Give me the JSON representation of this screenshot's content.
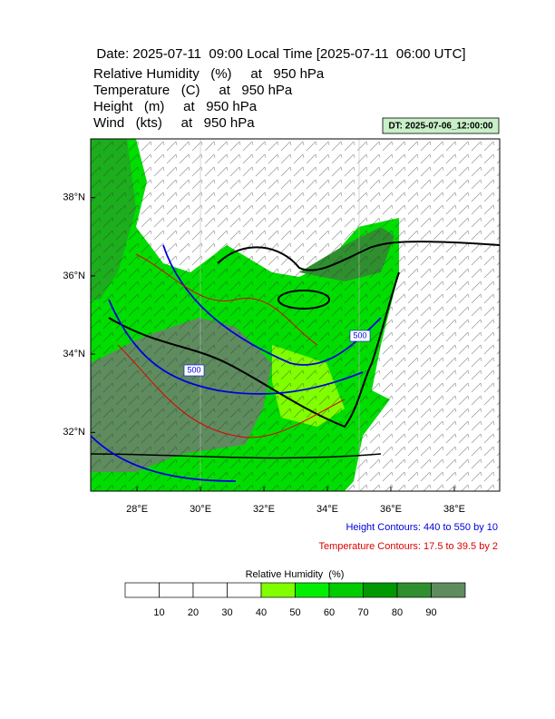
{
  "title": "Date: 2025-07-11  09:00 Local Time [2025-07-11  06:00 UTC]",
  "variables": [
    "Relative Humidity   (%)     at   950 hPa",
    "Temperature   (C)     at   950 hPa",
    "Height   (m)     at   950 hPa",
    "Wind   (kts)     at   950 hPa"
  ],
  "dt_label": "DT: 2025-07-06_12:00:00",
  "map": {
    "lonlim": [
      26.54,
      39.43
    ],
    "latlim": [
      30.5,
      39.5
    ],
    "lon_ticks": [
      {
        "value": 28,
        "label": "28°E"
      },
      {
        "value": 30,
        "label": "30°E"
      },
      {
        "value": 32,
        "label": "32°E"
      },
      {
        "value": 34,
        "label": "34°E"
      },
      {
        "value": 36,
        "label": "36°E"
      },
      {
        "value": 38,
        "label": "38°E"
      }
    ],
    "lat_ticks": [
      {
        "value": 32,
        "label": "32°N"
      },
      {
        "value": 34,
        "label": "34°N"
      },
      {
        "value": 36,
        "label": "36°N"
      },
      {
        "value": 38,
        "label": "38°N"
      }
    ],
    "contour_labels": [
      "500",
      "500"
    ]
  },
  "height_note": "Height Contours: 440 to 550 by 10",
  "temperature_note": "Temperature Contours: 17.5 to 39.5 by 2",
  "colorbar": {
    "title": "Relative Humidity  (%)",
    "ticks": [
      10,
      20,
      30,
      40,
      50,
      60,
      70,
      80,
      90
    ],
    "colors": [
      "#ffffff",
      "#ffffff",
      "#ffffff",
      "#ffffff",
      "#80ff00",
      "#00ee00",
      "#00cc00",
      "#009a00",
      "#2f8f2f",
      "#5e8c5e"
    ]
  }
}
